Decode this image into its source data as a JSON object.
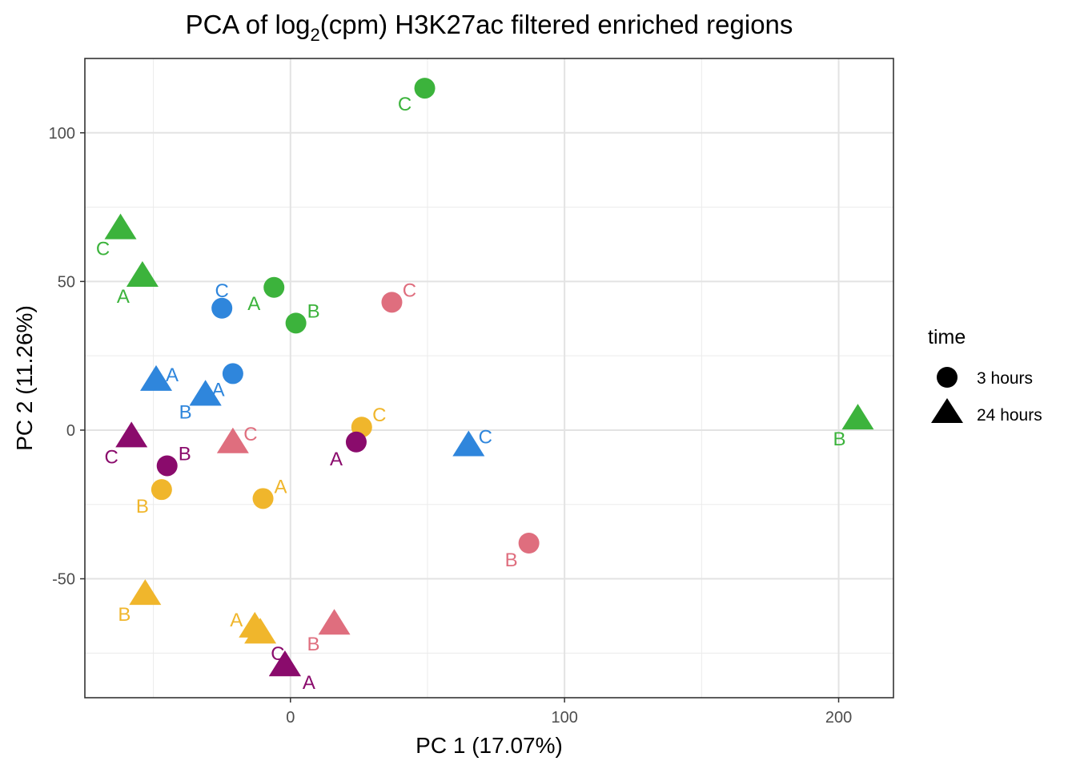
{
  "chart_data": {
    "type": "scatter",
    "title_main": "PCA of log",
    "title_sub": "2",
    "title_rest": "(cpm) H3K27ac filtered enriched regions",
    "xlabel": "PC 1 (17.07%)",
    "ylabel": "PC 2 (11.26%)",
    "xlim": [
      -75,
      220
    ],
    "ylim": [
      -90,
      125
    ],
    "xticks": [
      0,
      100,
      200
    ],
    "yticks": [
      -50,
      0,
      50,
      100
    ],
    "xtick_labels": [
      "0",
      "100",
      "200"
    ],
    "ytick_labels": [
      "-50",
      "0",
      "50",
      "100"
    ],
    "xminor": [
      -50,
      50,
      150
    ],
    "yminor": [
      -75,
      -25,
      25,
      75
    ],
    "legend": {
      "title": "time",
      "position": "right",
      "items": [
        {
          "label": "3 hours",
          "shape": "circle"
        },
        {
          "label": "24 hours",
          "shape": "triangle"
        }
      ]
    },
    "colors": {
      "green": "#3cb33c",
      "blue": "#2f86dc",
      "pink": "#df6e7e",
      "yellow": "#f0b62c",
      "purple": "#8a0b6c"
    },
    "points": [
      {
        "x": 49,
        "y": 115,
        "shape": "circle",
        "color": "green",
        "label": "C",
        "ldx": -25,
        "ldy": 20
      },
      {
        "x": -6,
        "y": 48,
        "shape": "circle",
        "color": "green",
        "label": "A",
        "ldx": -25,
        "ldy": 20
      },
      {
        "x": 2,
        "y": 36,
        "shape": "circle",
        "color": "green",
        "label": "B",
        "ldx": 22,
        "ldy": -15
      },
      {
        "x": -25,
        "y": 41,
        "shape": "circle",
        "color": "blue",
        "label": "C",
        "ldx": 0,
        "ldy": -22
      },
      {
        "x": -21,
        "y": 19,
        "shape": "circle",
        "color": "blue",
        "label": "",
        "ldx": 0,
        "ldy": 0
      },
      {
        "x": 37,
        "y": 43,
        "shape": "circle",
        "color": "pink",
        "label": "C",
        "ldx": 22,
        "ldy": -15
      },
      {
        "x": 87,
        "y": -38,
        "shape": "circle",
        "color": "pink",
        "label": "B",
        "ldx": -22,
        "ldy": 21
      },
      {
        "x": 26,
        "y": 1,
        "shape": "circle",
        "color": "yellow",
        "label": "C",
        "ldx": 22,
        "ldy": -15
      },
      {
        "x": -47,
        "y": -20,
        "shape": "circle",
        "color": "yellow",
        "label": "B",
        "ldx": -24,
        "ldy": 21
      },
      {
        "x": -10,
        "y": -23,
        "shape": "circle",
        "color": "yellow",
        "label": "A",
        "ldx": 22,
        "ldy": -15
      },
      {
        "x": 24,
        "y": -4,
        "shape": "circle",
        "color": "purple",
        "label": "A",
        "ldx": -25,
        "ldy": 21
      },
      {
        "x": -45,
        "y": -12,
        "shape": "circle",
        "color": "purple",
        "label": "B",
        "ldx": 22,
        "ldy": -15
      },
      {
        "x": -62,
        "y": 68,
        "shape": "triangle",
        "color": "green",
        "label": "C",
        "ldx": -22,
        "ldy": 26
      },
      {
        "x": -54,
        "y": 52,
        "shape": "triangle",
        "color": "green",
        "label": "A",
        "ldx": -24,
        "ldy": 26
      },
      {
        "x": 207,
        "y": 4,
        "shape": "triangle",
        "color": "green",
        "label": "B",
        "ldx": -23,
        "ldy": 26
      },
      {
        "x": -49,
        "y": 17,
        "shape": "triangle",
        "color": "blue",
        "label": "A",
        "ldx": 20,
        "ldy": -6
      },
      {
        "x": -31,
        "y": 12,
        "shape": "triangle",
        "color": "blue",
        "label": "A",
        "ldx": 16,
        "ldy": -6
      },
      {
        "x": -31,
        "y": 12,
        "shape": "triangle",
        "color": "blue",
        "label": "B",
        "ldx": -25,
        "ldy": 22
      },
      {
        "x": 65,
        "y": -5,
        "shape": "triangle",
        "color": "blue",
        "label": "C",
        "ldx": 21,
        "ldy": -10
      },
      {
        "x": -21,
        "y": -4,
        "shape": "triangle",
        "color": "pink",
        "label": "C",
        "ldx": 22,
        "ldy": -10
      },
      {
        "x": 16,
        "y": -65,
        "shape": "triangle",
        "color": "pink",
        "label": "B",
        "ldx": -26,
        "ldy": 26
      },
      {
        "x": -53,
        "y": -55,
        "shape": "triangle",
        "color": "yellow",
        "label": "B",
        "ldx": -26,
        "ldy": 26
      },
      {
        "x": -13,
        "y": -66,
        "shape": "triangle",
        "color": "yellow",
        "label": "A",
        "ldx": -23,
        "ldy": -8
      },
      {
        "x": -11,
        "y": -68,
        "shape": "triangle",
        "color": "yellow",
        "label": "",
        "ldx": 0,
        "ldy": 0
      },
      {
        "x": -2,
        "y": -79,
        "shape": "triangle",
        "color": "purple",
        "label": "A",
        "ldx": 30,
        "ldy": 22
      },
      {
        "x": -2,
        "y": -79,
        "shape": "triangle",
        "color": "purple",
        "label": "C",
        "ldx": -9,
        "ldy": -14
      },
      {
        "x": -58,
        "y": -2,
        "shape": "triangle",
        "color": "purple",
        "label": "C",
        "ldx": -25,
        "ldy": 26
      }
    ]
  }
}
